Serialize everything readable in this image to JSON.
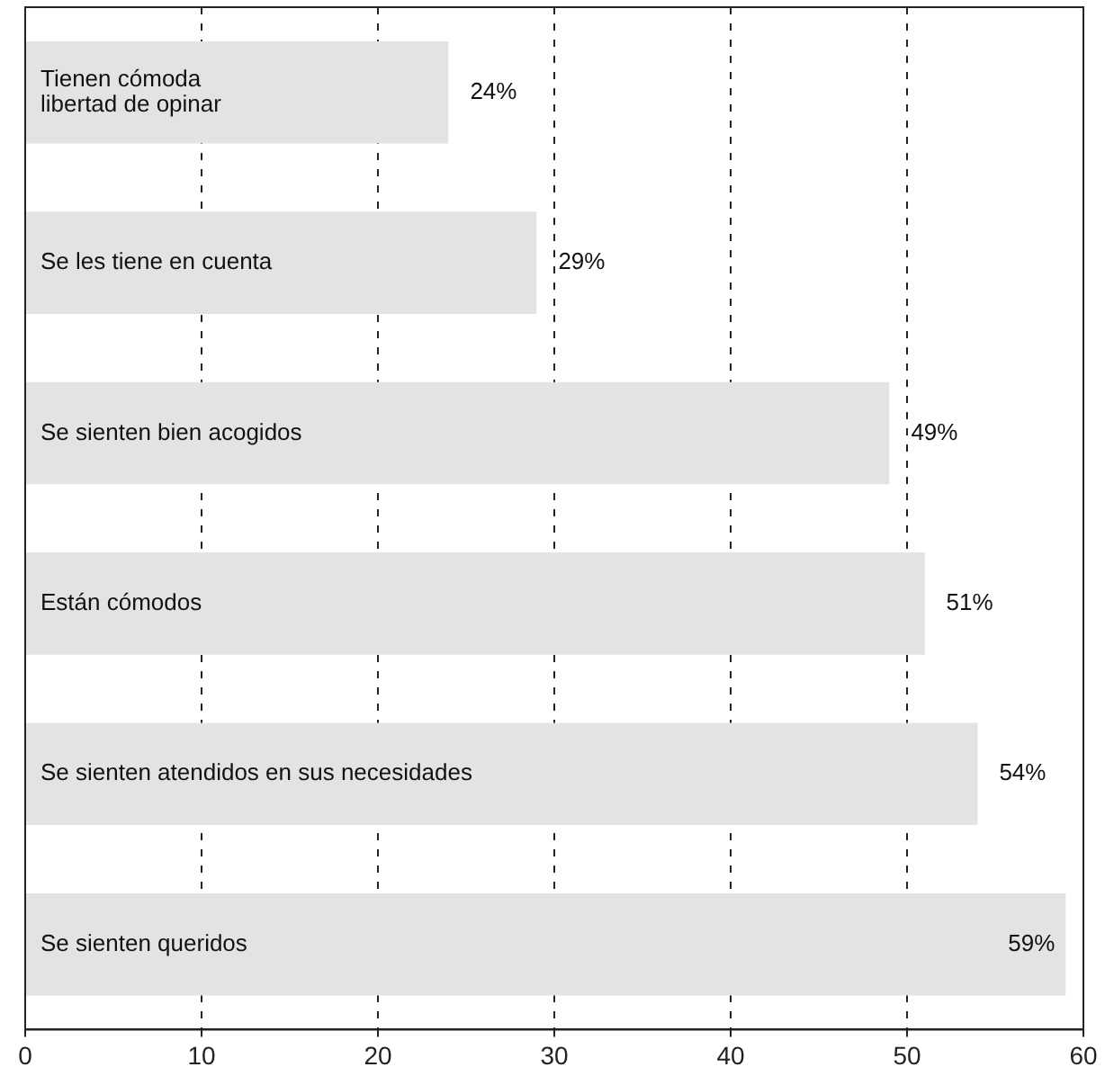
{
  "chart_data": {
    "type": "bar",
    "orientation": "horizontal",
    "categories": [
      "Tienen cómoda libertad de opinar",
      "Se les tiene en cuenta",
      "Se sienten bien acogidos",
      "Están cómodos",
      "Se sienten atendidos en sus necesidades",
      "Se sienten queridos"
    ],
    "values": [
      24,
      29,
      49,
      51,
      54,
      59
    ],
    "value_labels": [
      "24%",
      "29%",
      "49%",
      "51%",
      "54%",
      "59%"
    ],
    "color": "#e3e3e3",
    "xlim": [
      0,
      60
    ],
    "xticks": [
      0,
      10,
      20,
      30,
      40,
      50,
      60
    ],
    "grid": "x",
    "legend": false
  }
}
